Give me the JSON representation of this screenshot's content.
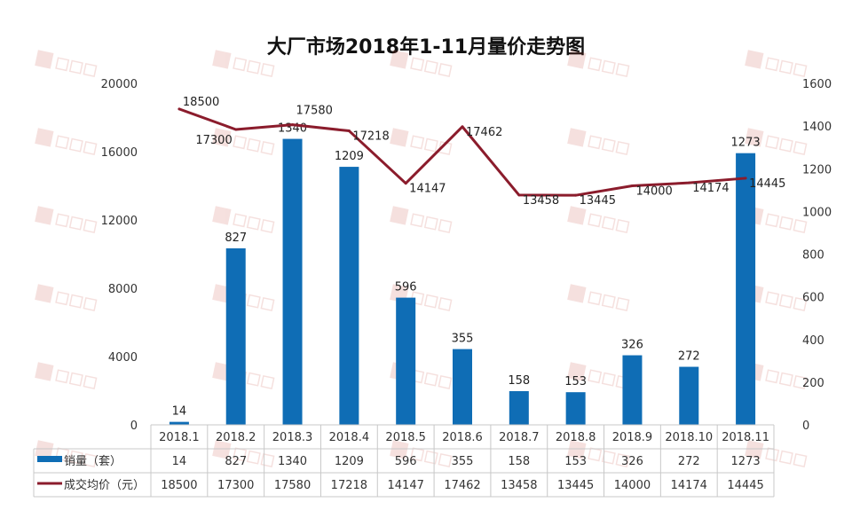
{
  "chart_data": {
    "type": "bar+line",
    "title": "大厂市场2018年1-11月量价走势图",
    "categories": [
      "2018.1",
      "2018.2",
      "2018.3",
      "2018.4",
      "2018.5",
      "2018.6",
      "2018.7",
      "2018.8",
      "2018.9",
      "2018.10",
      "2018.11"
    ],
    "series": [
      {
        "name": "销量（套）",
        "type": "bar",
        "axis": "right",
        "color": "#0f6db5",
        "values": [
          14,
          827,
          1340,
          1209,
          596,
          355,
          158,
          153,
          326,
          272,
          1273
        ]
      },
      {
        "name": "成交均价（元）",
        "type": "line",
        "axis": "left",
        "color": "#8b1c2c",
        "values": [
          18500,
          17300,
          17580,
          17218,
          14147,
          17462,
          13458,
          13445,
          14000,
          14174,
          14445
        ]
      }
    ],
    "left_axis": {
      "range": [
        0,
        20000
      ],
      "ticks": [
        "0",
        "4000",
        "8000",
        "12000",
        "16000",
        "20000"
      ]
    },
    "right_axis": {
      "range": [
        0,
        1600
      ],
      "ticks": [
        "0",
        "200",
        "400",
        "600",
        "800",
        "1000",
        "1200",
        "1400",
        "1600"
      ]
    },
    "grid": false,
    "legend": "data-table-bottom",
    "watermark": "世联行"
  }
}
